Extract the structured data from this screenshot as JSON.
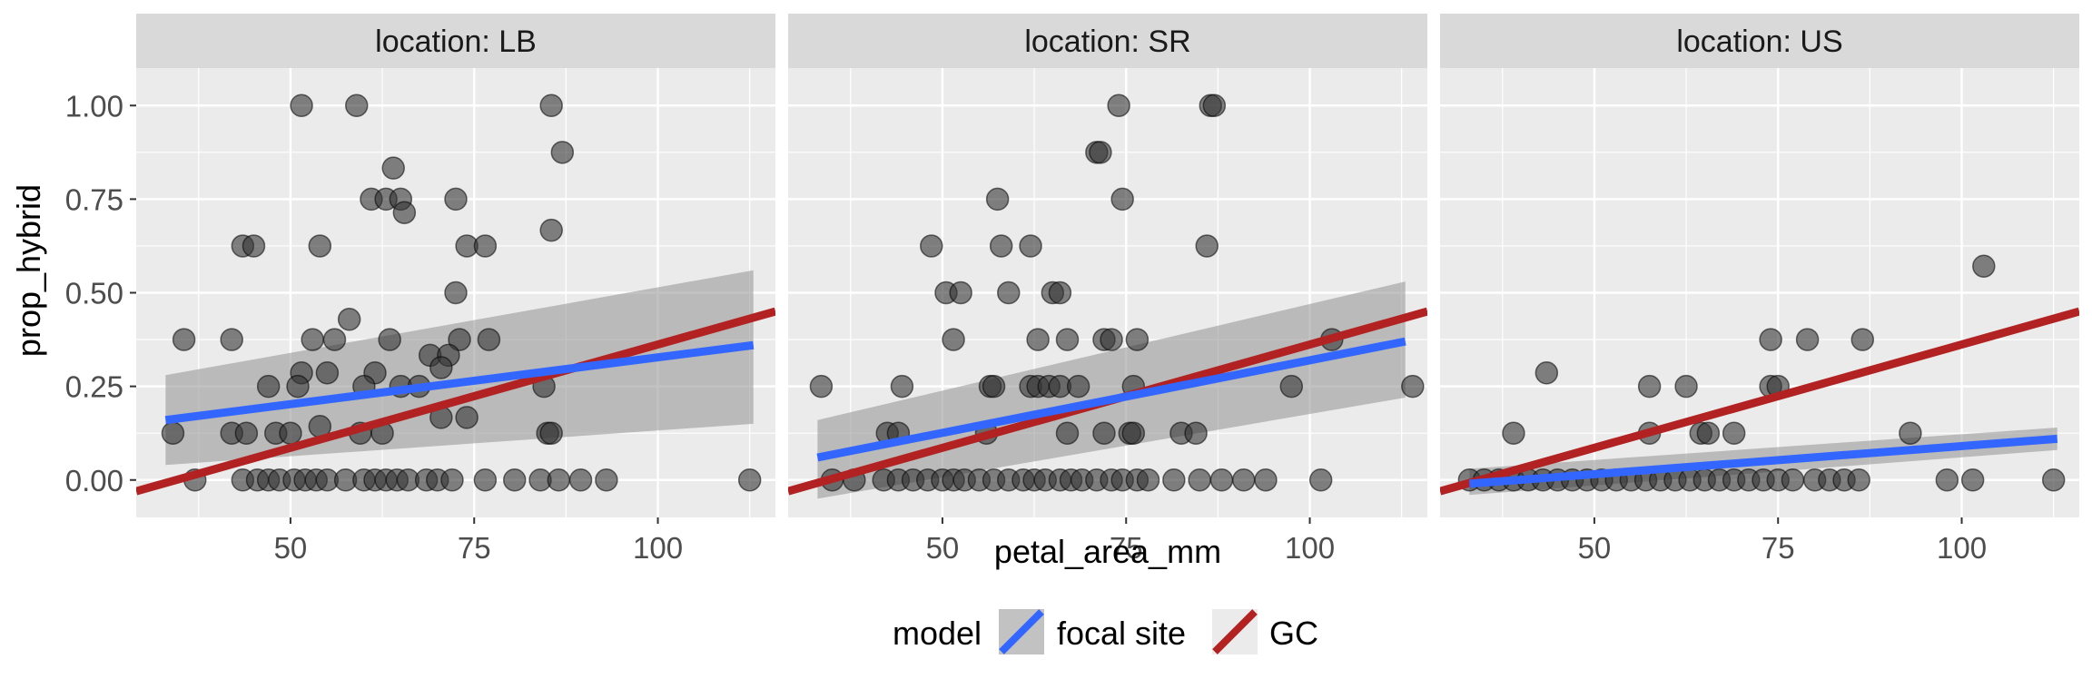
{
  "chart_data": {
    "type": "scatter",
    "facet_label_prefix": "location: ",
    "xlabel": "petal_area_mm",
    "ylabel": "prop_hybrid",
    "xlim": [
      29,
      116
    ],
    "ylim": [
      -0.1,
      1.1
    ],
    "x_ticks": [
      50,
      75,
      100
    ],
    "y_ticks": [
      0,
      0.25,
      0.5,
      0.75,
      1
    ],
    "y_tick_labels": [
      "0.00",
      "0.25",
      "0.50",
      "0.75",
      "1.00"
    ],
    "grid": true,
    "legend": {
      "position": "bottom",
      "title": "model",
      "entries": [
        {
          "label": "focal site",
          "color": "#3366ff"
        },
        {
          "label": "GC",
          "color": "#b22222"
        }
      ]
    },
    "colors": {
      "panel_bg": "#ebebeb",
      "strip_bg": "#d9d9d9",
      "grid": "#ffffff",
      "points": "#333333",
      "ribbon": "#999999",
      "focal_line": "#3366ff",
      "gc_line": "#b22222"
    },
    "panels": [
      {
        "location": "LB",
        "focal_fit": {
          "x": [
            33,
            113
          ],
          "y": [
            0.16,
            0.36
          ]
        },
        "focal_band": {
          "lower": [
            0.04,
            0.15
          ],
          "upper": [
            0.28,
            0.56
          ]
        },
        "gc_fit": {
          "x": [
            29,
            116
          ],
          "y": [
            -0.03,
            0.45
          ]
        },
        "points": [
          [
            51.5,
            1.0
          ],
          [
            59,
            1.0
          ],
          [
            85.5,
            1.0
          ],
          [
            87,
            0.875
          ],
          [
            64,
            0.833
          ],
          [
            61,
            0.75
          ],
          [
            63,
            0.75
          ],
          [
            65,
            0.75
          ],
          [
            72.5,
            0.75
          ],
          [
            65.5,
            0.714
          ],
          [
            85.5,
            0.667
          ],
          [
            43.5,
            0.625
          ],
          [
            45,
            0.625
          ],
          [
            54,
            0.625
          ],
          [
            74,
            0.625
          ],
          [
            76.5,
            0.625
          ],
          [
            72.5,
            0.5
          ],
          [
            58,
            0.429
          ],
          [
            35.5,
            0.375
          ],
          [
            42,
            0.375
          ],
          [
            53,
            0.375
          ],
          [
            56,
            0.375
          ],
          [
            63.5,
            0.375
          ],
          [
            73,
            0.375
          ],
          [
            77,
            0.375
          ],
          [
            69,
            0.333
          ],
          [
            71.5,
            0.333
          ],
          [
            70.5,
            0.3
          ],
          [
            51.5,
            0.286
          ],
          [
            55,
            0.286
          ],
          [
            61.5,
            0.286
          ],
          [
            47,
            0.25
          ],
          [
            51,
            0.25
          ],
          [
            60,
            0.25
          ],
          [
            65,
            0.25
          ],
          [
            67.5,
            0.25
          ],
          [
            84.5,
            0.25
          ],
          [
            70.5,
            0.167
          ],
          [
            74,
            0.167
          ],
          [
            54,
            0.143
          ],
          [
            42,
            0.125
          ],
          [
            44,
            0.125
          ],
          [
            48,
            0.125
          ],
          [
            50,
            0.125
          ],
          [
            59.5,
            0.125
          ],
          [
            62.5,
            0.125
          ],
          [
            85,
            0.125
          ],
          [
            85.5,
            0.125
          ],
          [
            34,
            0.125
          ],
          [
            37,
            0
          ],
          [
            43.5,
            0
          ],
          [
            45.5,
            0
          ],
          [
            47,
            0
          ],
          [
            48.5,
            0
          ],
          [
            50.5,
            0
          ],
          [
            52,
            0
          ],
          [
            53.5,
            0
          ],
          [
            55,
            0
          ],
          [
            57.5,
            0
          ],
          [
            60,
            0
          ],
          [
            61.5,
            0
          ],
          [
            63,
            0
          ],
          [
            64.5,
            0
          ],
          [
            66,
            0
          ],
          [
            68.5,
            0
          ],
          [
            70,
            0
          ],
          [
            72,
            0
          ],
          [
            76.5,
            0
          ],
          [
            80.5,
            0
          ],
          [
            84,
            0
          ],
          [
            86.5,
            0
          ],
          [
            89.5,
            0
          ],
          [
            93,
            0
          ],
          [
            112.5,
            0
          ]
        ]
      },
      {
        "location": "SR",
        "focal_fit": {
          "x": [
            33,
            113
          ],
          "y": [
            0.06,
            0.37
          ]
        },
        "focal_band": {
          "lower": [
            -0.05,
            0.22
          ],
          "upper": [
            0.16,
            0.53
          ]
        },
        "gc_fit": {
          "x": [
            29,
            116
          ],
          "y": [
            -0.03,
            0.45
          ]
        },
        "points": [
          [
            74,
            1.0
          ],
          [
            86.5,
            1.0
          ],
          [
            87,
            1.0
          ],
          [
            71,
            0.875
          ],
          [
            71.5,
            0.875
          ],
          [
            57.5,
            0.75
          ],
          [
            74.5,
            0.75
          ],
          [
            48.5,
            0.625
          ],
          [
            58,
            0.625
          ],
          [
            62,
            0.625
          ],
          [
            86,
            0.625
          ],
          [
            50.5,
            0.5
          ],
          [
            52.5,
            0.5
          ],
          [
            59,
            0.5
          ],
          [
            65,
            0.5
          ],
          [
            66,
            0.5
          ],
          [
            51.5,
            0.375
          ],
          [
            63,
            0.375
          ],
          [
            67,
            0.375
          ],
          [
            72,
            0.375
          ],
          [
            73,
            0.375
          ],
          [
            76.5,
            0.375
          ],
          [
            103,
            0.375
          ],
          [
            33.5,
            0.25
          ],
          [
            44.5,
            0.25
          ],
          [
            56.5,
            0.25
          ],
          [
            57,
            0.25
          ],
          [
            62,
            0.25
          ],
          [
            63,
            0.25
          ],
          [
            64.5,
            0.25
          ],
          [
            66,
            0.25
          ],
          [
            68.5,
            0.25
          ],
          [
            76,
            0.25
          ],
          [
            97.5,
            0.25
          ],
          [
            114,
            0.25
          ],
          [
            42.5,
            0.125
          ],
          [
            44,
            0.125
          ],
          [
            56,
            0.125
          ],
          [
            67,
            0.125
          ],
          [
            72,
            0.125
          ],
          [
            75.5,
            0.125
          ],
          [
            76,
            0.125
          ],
          [
            82.5,
            0.125
          ],
          [
            84.5,
            0.125
          ],
          [
            35,
            0
          ],
          [
            38,
            0
          ],
          [
            42,
            0
          ],
          [
            44,
            0
          ],
          [
            46,
            0
          ],
          [
            48,
            0
          ],
          [
            50,
            0
          ],
          [
            51.5,
            0
          ],
          [
            53,
            0
          ],
          [
            55,
            0
          ],
          [
            57,
            0
          ],
          [
            59,
            0
          ],
          [
            61,
            0
          ],
          [
            62.5,
            0
          ],
          [
            64,
            0
          ],
          [
            66,
            0
          ],
          [
            67.5,
            0
          ],
          [
            69,
            0
          ],
          [
            71,
            0
          ],
          [
            73,
            0
          ],
          [
            74.5,
            0
          ],
          [
            76.5,
            0
          ],
          [
            78,
            0
          ],
          [
            81.5,
            0
          ],
          [
            85,
            0
          ],
          [
            88,
            0
          ],
          [
            91,
            0
          ],
          [
            94,
            0
          ],
          [
            101.5,
            0
          ]
        ]
      },
      {
        "location": "US",
        "focal_fit": {
          "x": [
            33,
            113
          ],
          "y": [
            -0.01,
            0.11
          ]
        },
        "focal_band": {
          "lower": [
            -0.04,
            0.08
          ],
          "upper": [
            0.03,
            0.14
          ]
        },
        "gc_fit": {
          "x": [
            29,
            116
          ],
          "y": [
            -0.03,
            0.45
          ]
        },
        "points": [
          [
            103,
            0.571
          ],
          [
            74,
            0.375
          ],
          [
            79,
            0.375
          ],
          [
            86.5,
            0.375
          ],
          [
            43.5,
            0.286
          ],
          [
            57.5,
            0.25
          ],
          [
            62.5,
            0.25
          ],
          [
            74,
            0.25
          ],
          [
            75,
            0.25
          ],
          [
            39,
            0.125
          ],
          [
            57.5,
            0.125
          ],
          [
            64.5,
            0.125
          ],
          [
            65.5,
            0.125
          ],
          [
            69,
            0.125
          ],
          [
            93,
            0.125
          ],
          [
            33,
            0
          ],
          [
            35,
            0
          ],
          [
            37,
            0
          ],
          [
            39,
            0
          ],
          [
            41,
            0
          ],
          [
            43,
            0
          ],
          [
            45,
            0
          ],
          [
            47,
            0
          ],
          [
            49,
            0
          ],
          [
            51,
            0
          ],
          [
            53,
            0
          ],
          [
            55,
            0
          ],
          [
            57,
            0
          ],
          [
            59,
            0
          ],
          [
            61,
            0
          ],
          [
            63,
            0
          ],
          [
            65,
            0
          ],
          [
            67,
            0
          ],
          [
            69,
            0
          ],
          [
            71,
            0
          ],
          [
            73,
            0
          ],
          [
            75,
            0
          ],
          [
            77,
            0
          ],
          [
            80,
            0
          ],
          [
            82,
            0
          ],
          [
            84,
            0
          ],
          [
            86,
            0
          ],
          [
            98,
            0
          ],
          [
            101.5,
            0
          ],
          [
            112.5,
            0
          ]
        ]
      }
    ]
  }
}
